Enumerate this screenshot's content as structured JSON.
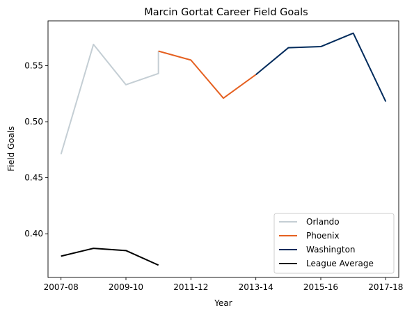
{
  "chart_data": {
    "type": "line",
    "title": "Marcin Gortat Career Field Goals",
    "xlabel": "Year",
    "ylabel": "Field Goals",
    "x_ticks": [
      "2007-08",
      "2009-10",
      "2011-12",
      "2013-14",
      "2015-16",
      "2017-18"
    ],
    "y_ticks": [
      "0.40",
      "0.45",
      "0.50",
      "0.55"
    ],
    "xlim": [
      -0.4,
      10.4
    ],
    "ylim": [
      0.361,
      0.59
    ],
    "grid": false,
    "legend_position": "lower-right",
    "series": [
      {
        "name": "Orlando",
        "color": "#c4ced4",
        "points": [
          [
            0,
            0.471
          ],
          [
            1,
            0.569
          ],
          [
            2,
            0.533
          ],
          [
            3,
            0.543
          ],
          [
            3,
            0.563
          ]
        ]
      },
      {
        "name": "Phoenix",
        "color": "#e56020",
        "points": [
          [
            3,
            0.563
          ],
          [
            4,
            0.555
          ],
          [
            5,
            0.521
          ],
          [
            6,
            0.542
          ]
        ]
      },
      {
        "name": "Washington",
        "color": "#002b5c",
        "points": [
          [
            6,
            0.542
          ],
          [
            7,
            0.566
          ],
          [
            8,
            0.567
          ],
          [
            9,
            0.579
          ],
          [
            10,
            0.518
          ]
        ]
      },
      {
        "name": "League Average",
        "color": "#000000",
        "points": [
          [
            0,
            0.38
          ],
          [
            1,
            0.387
          ],
          [
            2,
            0.385
          ],
          [
            3,
            0.372
          ]
        ]
      }
    ]
  }
}
